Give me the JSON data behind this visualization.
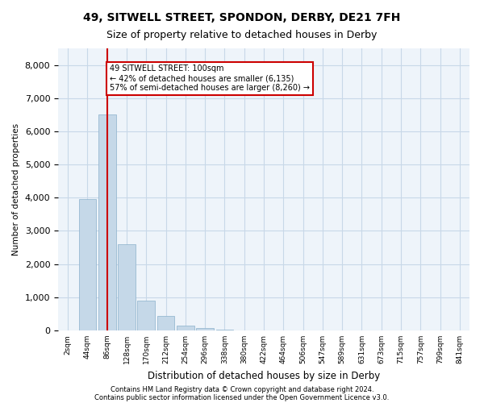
{
  "title_line1": "49, SITWELL STREET, SPONDON, DERBY, DE21 7FH",
  "title_line2": "Size of property relative to detached houses in Derby",
  "xlabel": "Distribution of detached houses by size in Derby",
  "ylabel": "Number of detached properties",
  "footnote1": "Contains HM Land Registry data © Crown copyright and database right 2024.",
  "footnote2": "Contains public sector information licensed under the Open Government Licence v3.0.",
  "bar_labels": [
    "2sqm",
    "44sqm",
    "86sqm",
    "128sqm",
    "170sqm",
    "212sqm",
    "254sqm",
    "296sqm",
    "338sqm",
    "380sqm",
    "422sqm",
    "464sqm",
    "506sqm",
    "547sqm",
    "589sqm",
    "631sqm",
    "673sqm",
    "715sqm",
    "757sqm",
    "799sqm",
    "841sqm"
  ],
  "bar_values": [
    0,
    3950,
    6500,
    2600,
    900,
    430,
    150,
    65,
    20,
    0,
    0,
    0,
    0,
    0,
    0,
    0,
    0,
    0,
    0,
    0,
    0
  ],
  "bar_color": "#c5d8e8",
  "bar_edge_color": "#8ab0cc",
  "grid_color": "#c8d8e8",
  "background_color": "#eef4fa",
  "annotation_box_color": "#cc0000",
  "property_line_color": "#cc0000",
  "property_sqm": 100,
  "property_bin_index": 2,
  "annotation_text": "49 SITWELL STREET: 100sqm\n← 42% of detached houses are smaller (6,135)\n57% of semi-detached houses are larger (8,260) →",
  "ylim": [
    0,
    8500
  ],
  "yticks": [
    0,
    1000,
    2000,
    3000,
    4000,
    5000,
    6000,
    7000,
    8000
  ]
}
